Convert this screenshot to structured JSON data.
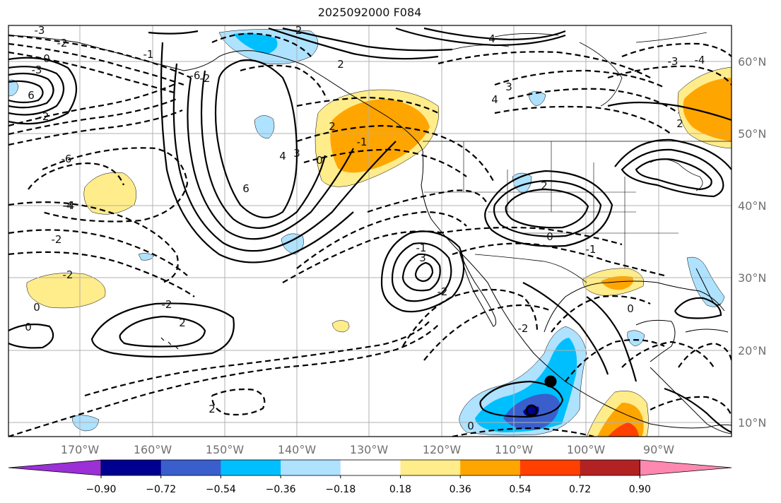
{
  "title": "2025092000 F084",
  "lon_labels": [
    "170°W",
    "160°W",
    "150°W",
    "140°W",
    "130°W",
    "120°W",
    "110°W",
    "100°W",
    "90°W"
  ],
  "lat_labels": [
    "60°N",
    "50°N",
    "40°N",
    "30°N",
    "20°N",
    "10°N"
  ],
  "colorbar": {
    "ticks": [
      "−0.90",
      "−0.72",
      "−0.54",
      "−0.36",
      "−0.18",
      "0.18",
      "0.36",
      "0.54",
      "0.72",
      "0.90"
    ],
    "colors": [
      "#9b30d6",
      "#000090",
      "#3a5fcd",
      "#00bfff",
      "#aee2ff",
      "#ffffff",
      "#ffec8b",
      "#ffa500",
      "#ff4000",
      "#b22222",
      "#ff88b0"
    ]
  },
  "fill_colors": {
    "light_blue": "#aee2ff",
    "blue": "#00bfff",
    "royal_blue": "#3a5fcd",
    "navy": "#000090",
    "yellow": "#ffec8b",
    "orange": "#ffa500",
    "red_orange": "#ff4000"
  },
  "contour_labels": [
    "-3",
    "-2",
    "0",
    "-3",
    "6",
    "-2",
    "-6",
    "-4",
    "-2",
    "-2",
    "0",
    "2",
    "4",
    "3",
    "-2",
    "-6",
    "2",
    "0",
    "-1",
    "2",
    "4",
    "3",
    "-4",
    "-2",
    "0",
    "2",
    "-1",
    "-2",
    "-1",
    "3",
    "4",
    "6",
    "0",
    "2",
    "-2",
    "2",
    "0",
    "-2",
    "-3",
    "-4",
    "0",
    "-1"
  ],
  "markers": [
    {
      "name": "storm-center-filled",
      "lon": -105.5,
      "lat": 15.7
    },
    {
      "name": "storm-center-ring",
      "lon": -107.5,
      "lat": 11.5
    }
  ]
}
